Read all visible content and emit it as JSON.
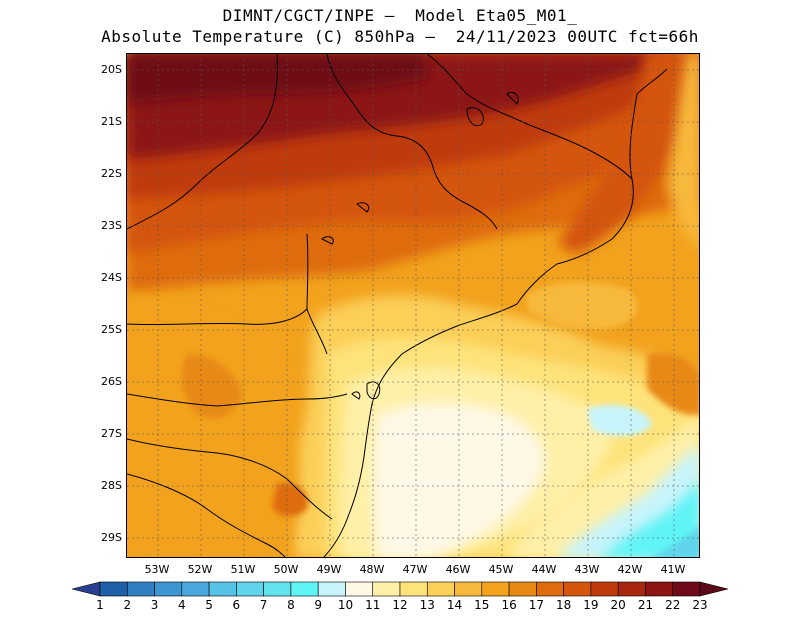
{
  "title": {
    "line1": "DIMNT/CGCT/INPE –  Model Eta05_M01_",
    "line2": "Absolute Temperature (C) 850hPa –  24/11/2023 00UTC fct=66h"
  },
  "map": {
    "region": "South/Southeast Brazil",
    "lat_labels": [
      "20S",
      "21S",
      "22S",
      "23S",
      "24S",
      "25S",
      "26S",
      "27S",
      "28S",
      "29S"
    ],
    "lon_labels": [
      "53W",
      "52W",
      "51W",
      "50W",
      "49W",
      "48W",
      "47W",
      "46W",
      "45W",
      "44W",
      "43W",
      "42W",
      "41W"
    ]
  },
  "colorbar": {
    "labels": [
      "1",
      "2",
      "3",
      "4",
      "5",
      "6",
      "7",
      "8",
      "9",
      "10",
      "11",
      "12",
      "13",
      "14",
      "15",
      "16",
      "17",
      "18",
      "19",
      "20",
      "21",
      "22",
      "23"
    ],
    "colors": [
      "#2a3f8f",
      "#1f5fa8",
      "#2f7fc1",
      "#3d95d1",
      "#4aa8dd",
      "#56c3e6",
      "#5fd4ea",
      "#62e3ee",
      "#5ff4f6",
      "#c7f4fb",
      "#fff8e6",
      "#fff0a8",
      "#fee37a",
      "#fbcf58",
      "#f7b93b",
      "#f2a21d",
      "#e88914",
      "#de6c0e",
      "#d4550c",
      "#bf3a0b",
      "#a9260e",
      "#8c1513",
      "#6e0a19",
      "#5a0a18"
    ],
    "under_color": "#2a3f8f",
    "over_color": "#5a0a18"
  }
}
